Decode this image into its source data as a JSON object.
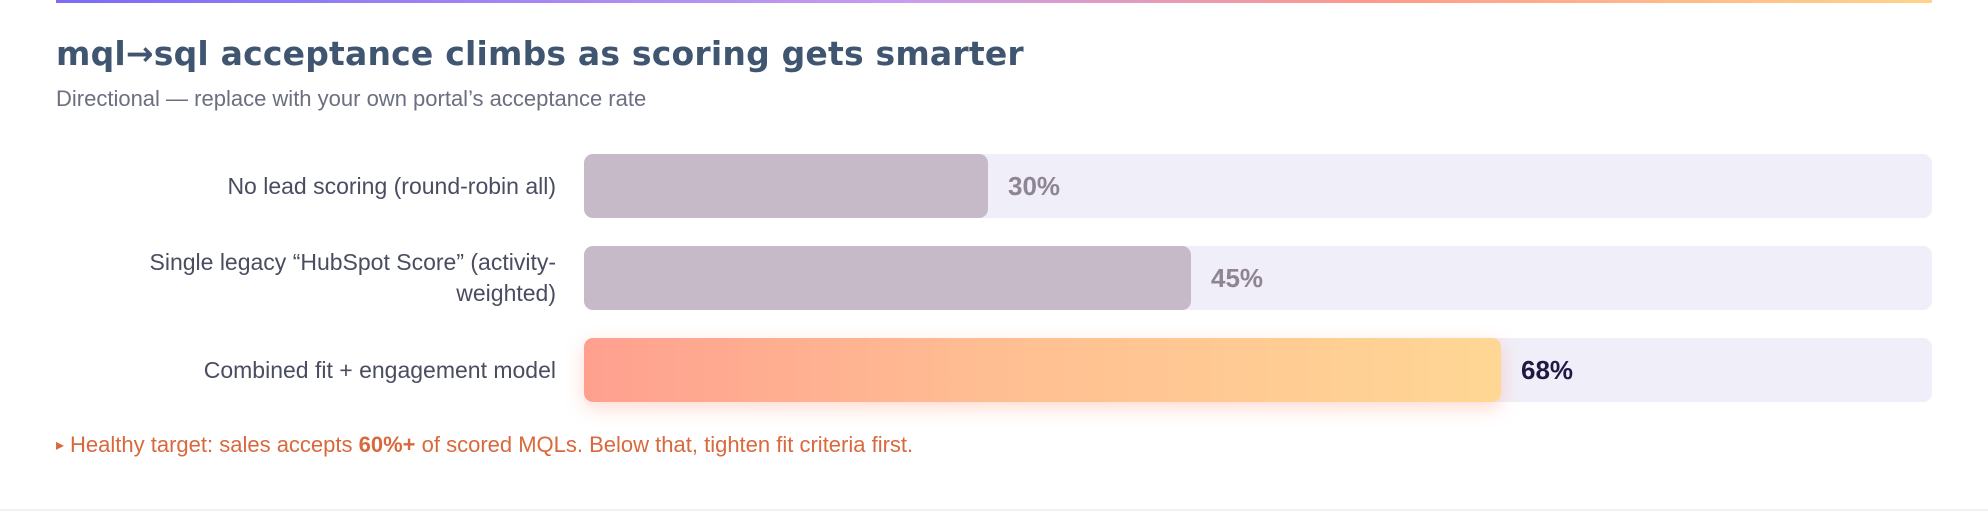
{
  "chart_data": {
    "type": "bar",
    "orientation": "horizontal",
    "title": "mql→sql acceptance climbs as scoring gets smarter",
    "subtitle": "Directional — replace with your own portal’s acceptance rate",
    "xlim": [
      0,
      100
    ],
    "value_suffix": "%",
    "categories": [
      "No lead scoring (round-robin all)",
      "Single legacy “HubSpot Score” (activity-weighted)",
      "Combined fit + engagement model"
    ],
    "values": [
      30,
      45,
      68
    ],
    "value_labels": [
      "30%",
      "45%",
      "68%"
    ],
    "highlighted": [
      false,
      false,
      true
    ],
    "grid": false,
    "legend": "none"
  },
  "colors": {
    "title": "#3f5570",
    "subtitle": "#6b6f80",
    "muted_bar": "#c7bac8",
    "track": "#f0eef8",
    "highlight_start": "#ffa08f",
    "highlight_end": "#ffd794",
    "muted_value": "#8e8494",
    "highlight_value": "#1f1a44",
    "footnote": "#d9683c"
  },
  "footnote": {
    "marker": "▸",
    "text_before": "Healthy target: sales accepts ",
    "emphasis": "60%+",
    "text_after": " of scored MQLs. Below that, tighten fit criteria first."
  }
}
